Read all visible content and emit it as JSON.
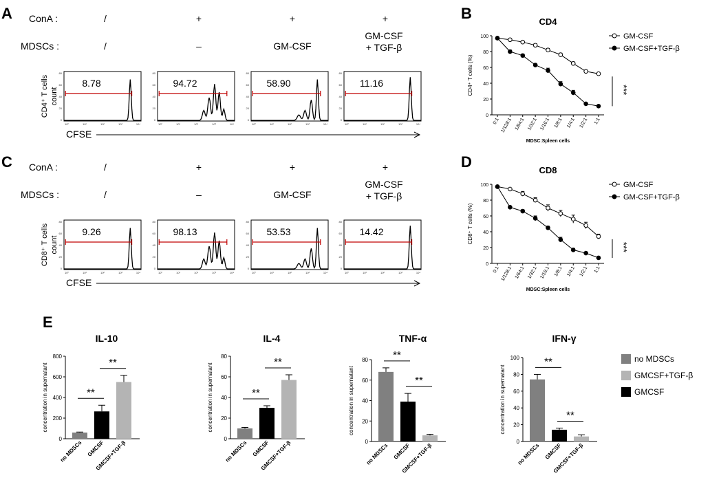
{
  "panel_labels": {
    "a": "A",
    "b": "B",
    "c": "C",
    "d": "D",
    "e": "E"
  },
  "flow_panels": [
    {
      "id": "A",
      "row_labels": {
        "cona": "ConA :",
        "mdscs": "MDSCs :"
      },
      "cona": [
        "/",
        "+",
        "+",
        "+"
      ],
      "mdscs": [
        "/",
        "–",
        "GM-CSF",
        "GM-CSF\n+ TGF-β"
      ],
      "values": [
        "8.78",
        "94.72",
        "58.90",
        "11.16"
      ],
      "ylabel": [
        "CD4⁺ T cells",
        "count"
      ],
      "xlabel": "CFSE",
      "yticks": [
        "80",
        "60",
        "40",
        "20",
        "0"
      ],
      "xticks": [
        "10⁰",
        "10¹",
        "10²",
        "10³",
        "10⁴"
      ]
    },
    {
      "id": "C",
      "row_labels": {
        "cona": "ConA :",
        "mdscs": "MDSCs :"
      },
      "cona": [
        "/",
        "+",
        "+",
        "+"
      ],
      "mdscs": [
        "/",
        "–",
        "GM-CSF",
        "GM-CSF\n+ TGF-β"
      ],
      "values": [
        "9.26",
        "98.13",
        "53.53",
        "14.42"
      ],
      "ylabel": [
        "CD8⁺ T cells",
        "count"
      ],
      "xlabel": "CFSE",
      "yticks": [
        "80",
        "60",
        "40",
        "20",
        "0"
      ],
      "xticks": [
        "10⁰",
        "10¹",
        "10²",
        "10³",
        "10⁴"
      ]
    }
  ],
  "chart_data": [
    {
      "panel": "B",
      "type": "line",
      "title": "CD4",
      "xlabel": "MDSC:Spleen cells",
      "ylabel": "CD4⁺ T cells (%)",
      "categories": [
        "0:1",
        "1/128:1",
        "1/64:1",
        "1/32:1",
        "1/16:1",
        "1/8:1",
        "1/4:1",
        "1/2:1",
        "1:1"
      ],
      "ylim": [
        0,
        100
      ],
      "yticks": [
        0,
        20,
        40,
        60,
        80,
        100
      ],
      "series": [
        {
          "name": "GM-CSF",
          "marker": "open",
          "values": [
            97,
            95,
            92,
            88,
            82,
            76,
            65,
            55,
            52
          ],
          "errors": [
            1,
            1,
            1,
            2,
            2,
            2,
            2,
            1,
            1
          ]
        },
        {
          "name": "GM-CSF+TGF-β",
          "marker": "filled",
          "values": [
            97,
            80,
            75,
            63,
            56,
            39,
            28,
            14,
            11
          ],
          "errors": [
            1,
            2,
            2,
            2,
            3,
            3,
            3,
            1,
            1
          ]
        }
      ],
      "significance": "***",
      "legend": "right"
    },
    {
      "panel": "D",
      "type": "line",
      "title": "CD8",
      "xlabel": "MDSC:Spleen cells",
      "ylabel": "CD8⁺ T cells (%)",
      "categories": [
        "0:1",
        "1/128:1",
        "1/64:1",
        "1/32:1",
        "1/16:1",
        "1/8:1",
        "1/4:1",
        "1/2:1",
        "1:1"
      ],
      "ylim": [
        0,
        100
      ],
      "yticks": [
        0,
        20,
        40,
        60,
        80,
        100
      ],
      "series": [
        {
          "name": "GM-CSF",
          "marker": "open",
          "values": [
            97,
            94,
            88,
            80,
            70,
            63,
            56,
            48,
            34
          ],
          "errors": [
            1,
            1,
            3,
            3,
            4,
            4,
            5,
            4,
            3
          ]
        },
        {
          "name": "GM-CSF+TGF-β",
          "marker": "filled",
          "values": [
            97,
            71,
            66,
            57,
            45,
            30,
            17,
            13,
            7
          ],
          "errors": [
            1,
            1,
            2,
            3,
            2,
            3,
            2,
            1,
            1
          ]
        }
      ],
      "significance": "***",
      "legend": "right"
    },
    {
      "panel": "E",
      "type": "bar",
      "title": "IL-10",
      "ylabel": "concentration in supernatant",
      "categories": [
        "no MDSCs",
        "GMCSF",
        "GMCSF+TGF-β"
      ],
      "values": [
        60,
        265,
        550
      ],
      "errors": [
        5,
        60,
        65
      ],
      "ylim": [
        0,
        800
      ],
      "yticks": [
        0,
        200,
        400,
        600,
        800
      ],
      "significance": [
        {
          "from": 0,
          "to": 1,
          "label": "**"
        },
        {
          "from": 1,
          "to": 2,
          "label": "**"
        }
      ]
    },
    {
      "panel": "E",
      "type": "bar",
      "title": "IL-4",
      "ylabel": "concentration in supernatant",
      "categories": [
        "no MDSCs",
        "GMCSF",
        "GMCSF+TGF-β"
      ],
      "values": [
        10,
        30,
        57
      ],
      "errors": [
        1,
        2,
        5
      ],
      "ylim": [
        0,
        80
      ],
      "yticks": [
        0,
        20,
        40,
        60,
        80
      ],
      "significance": [
        {
          "from": 0,
          "to": 1,
          "label": "**"
        },
        {
          "from": 1,
          "to": 2,
          "label": "**"
        }
      ]
    },
    {
      "panel": "E",
      "type": "bar",
      "title": "TNF-α",
      "ylabel": "concentration in supernatant",
      "categories": [
        "no MDSCs",
        "GMCSF",
        "GMCSF+TGF-β"
      ],
      "values": [
        68,
        39,
        6
      ],
      "errors": [
        4,
        8,
        1
      ],
      "ylim": [
        0,
        80
      ],
      "yticks": [
        0,
        20,
        40,
        60,
        80
      ],
      "significance": [
        {
          "from": 0,
          "to": 1,
          "label": "**"
        },
        {
          "from": 1,
          "to": 2,
          "label": "**"
        }
      ]
    },
    {
      "panel": "E",
      "type": "bar",
      "title": "IFN-γ",
      "ylabel": "concentration in supernatant",
      "categories": [
        "no MDSCs",
        "GMCSF",
        "GMCSF+TGF-β"
      ],
      "values": [
        74,
        14,
        6
      ],
      "errors": [
        6,
        2,
        2
      ],
      "ylim": [
        0,
        100
      ],
      "yticks": [
        0,
        20,
        40,
        60,
        80,
        100
      ],
      "significance": [
        {
          "from": 0,
          "to": 1,
          "label": "**"
        },
        {
          "from": 1,
          "to": 2,
          "label": "**"
        }
      ]
    }
  ],
  "bar_legend": [
    {
      "label": "no MDSCs",
      "color": "#808080"
    },
    {
      "label": "GMCSF+TGF-β",
      "color": "#b4b4b4"
    },
    {
      "label": "GMCSF",
      "color": "#000000"
    }
  ],
  "colors": {
    "gate": "#c00000",
    "bar_no_mdscs": "#808080",
    "bar_gmcsf": "#000000",
    "bar_tgf": "#b4b4b4"
  }
}
